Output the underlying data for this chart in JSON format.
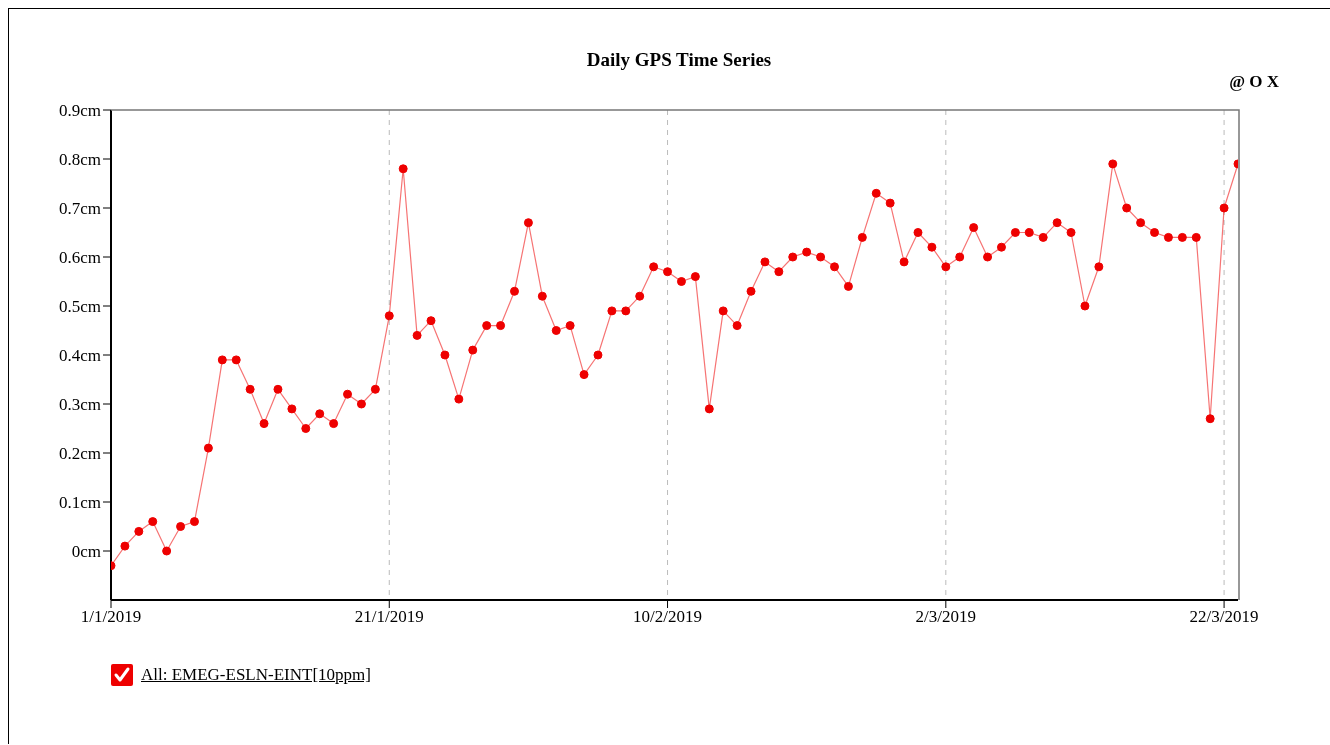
{
  "chart_data": {
    "type": "line",
    "title": "Daily GPS Time Series",
    "annotations": [
      "@ O X"
    ],
    "x": [
      "2019-01-01",
      "2019-01-02",
      "2019-01-03",
      "2019-01-04",
      "2019-01-05",
      "2019-01-06",
      "2019-01-07",
      "2019-01-08",
      "2019-01-09",
      "2019-01-10",
      "2019-01-11",
      "2019-01-12",
      "2019-01-13",
      "2019-01-14",
      "2019-01-15",
      "2019-01-16",
      "2019-01-17",
      "2019-01-18",
      "2019-01-19",
      "2019-01-20",
      "2019-01-21",
      "2019-01-22",
      "2019-01-23",
      "2019-01-24",
      "2019-01-25",
      "2019-01-26",
      "2019-01-27",
      "2019-01-28",
      "2019-01-29",
      "2019-01-30",
      "2019-01-31",
      "2019-02-01",
      "2019-02-02",
      "2019-02-03",
      "2019-02-04",
      "2019-02-05",
      "2019-02-06",
      "2019-02-07",
      "2019-02-08",
      "2019-02-09",
      "2019-02-10",
      "2019-02-11",
      "2019-02-12",
      "2019-02-13",
      "2019-02-14",
      "2019-02-15",
      "2019-02-16",
      "2019-02-17",
      "2019-02-18",
      "2019-02-19",
      "2019-02-20",
      "2019-02-21",
      "2019-02-22",
      "2019-02-23",
      "2019-02-24",
      "2019-02-25",
      "2019-02-26",
      "2019-02-27",
      "2019-02-28",
      "2019-03-01",
      "2019-03-02",
      "2019-03-03",
      "2019-03-04",
      "2019-03-05",
      "2019-03-06",
      "2019-03-07",
      "2019-03-08",
      "2019-03-09",
      "2019-03-10",
      "2019-03-11",
      "2019-03-12",
      "2019-03-13",
      "2019-03-14",
      "2019-03-15",
      "2019-03-16",
      "2019-03-17",
      "2019-03-18",
      "2019-03-19",
      "2019-03-20",
      "2019-03-21",
      "2019-03-22",
      "2019-03-23"
    ],
    "series": [
      {
        "name": "All: EMEG-ESLN-EINT[10ppm]",
        "color": "#ee0000",
        "values": [
          -0.03,
          0.01,
          0.04,
          0.06,
          0.0,
          0.05,
          0.06,
          0.21,
          0.39,
          0.39,
          0.33,
          0.26,
          0.33,
          0.29,
          0.25,
          0.28,
          0.26,
          0.32,
          0.3,
          0.33,
          0.48,
          0.78,
          0.44,
          0.47,
          0.4,
          0.31,
          0.41,
          0.46,
          0.46,
          0.53,
          0.67,
          0.52,
          0.45,
          0.46,
          0.36,
          0.4,
          0.49,
          0.49,
          0.52,
          0.58,
          0.57,
          0.55,
          0.56,
          0.29,
          0.49,
          0.46,
          0.53,
          0.59,
          0.57,
          0.6,
          0.61,
          0.6,
          0.58,
          0.54,
          0.64,
          0.73,
          0.71,
          0.59,
          0.65,
          0.62,
          0.58,
          0.6,
          0.66,
          0.6,
          0.62,
          0.65,
          0.65,
          0.64,
          0.67,
          0.65,
          0.5,
          0.58,
          0.79,
          0.7,
          0.67,
          0.65,
          0.64,
          0.64,
          0.64,
          0.27,
          0.7,
          0.79
        ]
      }
    ],
    "xlim": [
      "2019-01-01",
      "2019-03-23"
    ],
    "xticks": [
      {
        "value": "2019-01-01",
        "label": "1/1/2019"
      },
      {
        "value": "2019-01-21",
        "label": "21/1/2019"
      },
      {
        "value": "2019-02-10",
        "label": "10/2/2019"
      },
      {
        "value": "2019-03-02",
        "label": "2/3/2019"
      },
      {
        "value": "2019-03-22",
        "label": "22/3/2019"
      }
    ],
    "ylim": [
      -0.1,
      0.9
    ],
    "yticks": [
      {
        "value": 0,
        "label": "0cm"
      },
      {
        "value": 0.1,
        "label": "0.1cm"
      },
      {
        "value": 0.2,
        "label": "0.2cm"
      },
      {
        "value": 0.3,
        "label": "0.3cm"
      },
      {
        "value": 0.4,
        "label": "0.4cm"
      },
      {
        "value": 0.5,
        "label": "0.5cm"
      },
      {
        "value": 0.6,
        "label": "0.6cm"
      },
      {
        "value": 0.7,
        "label": "0.7cm"
      },
      {
        "value": 0.8,
        "label": "0.8cm"
      },
      {
        "value": 0.9,
        "label": "0.9cm"
      }
    ],
    "grid": "x",
    "legend": "bottom left",
    "marker": "circle",
    "line_style": "solid"
  }
}
